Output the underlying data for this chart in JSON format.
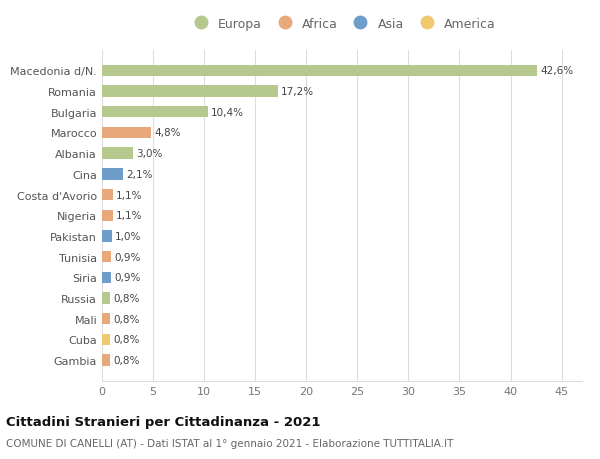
{
  "countries": [
    "Macedonia d/N.",
    "Romania",
    "Bulgaria",
    "Marocco",
    "Albania",
    "Cina",
    "Costa d'Avorio",
    "Nigeria",
    "Pakistan",
    "Tunisia",
    "Siria",
    "Russia",
    "Mali",
    "Cuba",
    "Gambia"
  ],
  "values": [
    42.6,
    17.2,
    10.4,
    4.8,
    3.0,
    2.1,
    1.1,
    1.1,
    1.0,
    0.9,
    0.9,
    0.8,
    0.8,
    0.8,
    0.8
  ],
  "labels": [
    "42,6%",
    "17,2%",
    "10,4%",
    "4,8%",
    "3,0%",
    "2,1%",
    "1,1%",
    "1,1%",
    "1,0%",
    "0,9%",
    "0,9%",
    "0,8%",
    "0,8%",
    "0,8%",
    "0,8%"
  ],
  "continents": [
    "Europa",
    "Europa",
    "Europa",
    "Africa",
    "Europa",
    "Asia",
    "Africa",
    "Africa",
    "Asia",
    "Africa",
    "Asia",
    "Europa",
    "Africa",
    "America",
    "Africa"
  ],
  "continent_colors": {
    "Europa": "#b5c98e",
    "Africa": "#e8a87c",
    "Asia": "#6e9dc9",
    "America": "#f0c96e"
  },
  "legend_order": [
    "Europa",
    "Africa",
    "Asia",
    "America"
  ],
  "title": "Cittadini Stranieri per Cittadinanza - 2021",
  "subtitle": "COMUNE DI CANELLI (AT) - Dati ISTAT al 1° gennaio 2021 - Elaborazione TUTTITALIA.IT",
  "xlim": [
    0,
    47
  ],
  "xticks": [
    0,
    5,
    10,
    15,
    20,
    25,
    30,
    35,
    40,
    45
  ],
  "background_color": "#ffffff",
  "grid_color": "#dddddd",
  "bar_height": 0.55
}
